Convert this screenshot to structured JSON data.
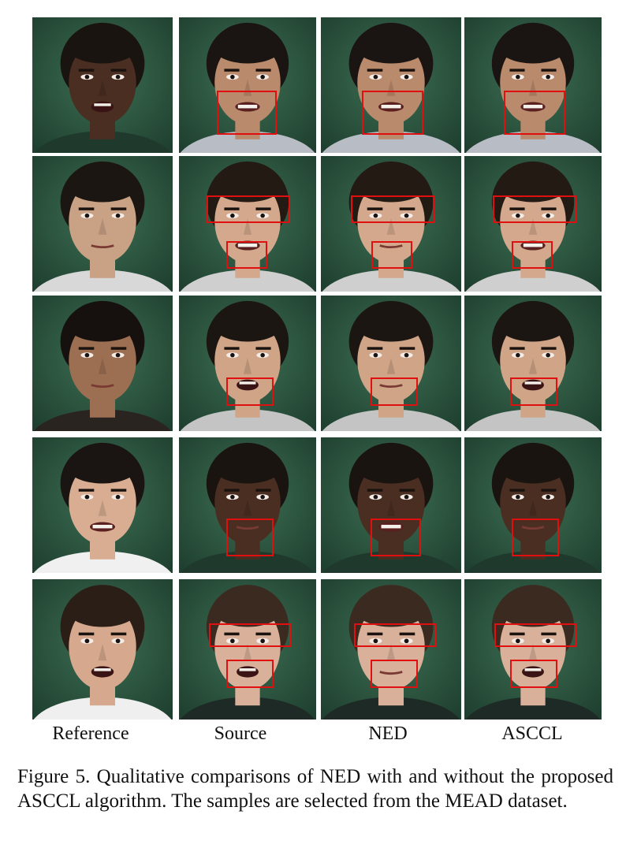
{
  "figure": {
    "columns": [
      {
        "key": "reference",
        "label": "Reference"
      },
      {
        "key": "source",
        "label": "Source"
      },
      {
        "key": "ned",
        "label": "NED"
      },
      {
        "key": "asccl",
        "label": "ASCCL"
      }
    ],
    "rows": [
      {
        "reference": {
          "skin": "#4a2e22",
          "hair": "#1a1410",
          "mouth": "open",
          "shirt": "#1f3a2c"
        },
        "source": {
          "skin": "#b98a6c",
          "hair": "#1a1412",
          "mouth": "teeth",
          "shirt": "#b8bcc4"
        },
        "ned": {
          "skin": "#b98a6c",
          "hair": "#1a1412",
          "mouth": "teeth",
          "shirt": "#b8bcc4"
        },
        "asccl": {
          "skin": "#b98a6c",
          "hair": "#1a1412",
          "mouth": "teeth",
          "shirt": "#b8bcc4"
        }
      },
      {
        "reference": {
          "skin": "#c9a184",
          "hair": "#1c1612",
          "mouth": "closed",
          "shirt": "#d8d8d8"
        },
        "source": {
          "skin": "#d4a88c",
          "hair": "#241a14",
          "mouth": "teeth",
          "shirt": "#cfcfcf"
        },
        "ned": {
          "skin": "#d4a88c",
          "hair": "#241a14",
          "mouth": "closed",
          "shirt": "#cfcfcf"
        },
        "asccl": {
          "skin": "#d4a88c",
          "hair": "#241a14",
          "mouth": "teeth",
          "shirt": "#cfcfcf"
        }
      },
      {
        "reference": {
          "skin": "#9c6e52",
          "hair": "#16110e",
          "mouth": "closed",
          "shirt": "#2a2420"
        },
        "source": {
          "skin": "#d0a487",
          "hair": "#1c1612",
          "mouth": "open",
          "shirt": "#c4c4c4"
        },
        "ned": {
          "skin": "#d0a487",
          "hair": "#1c1612",
          "mouth": "closed",
          "shirt": "#c4c4c4"
        },
        "asccl": {
          "skin": "#d0a487",
          "hair": "#1c1612",
          "mouth": "open",
          "shirt": "#c4c4c4"
        }
      },
      {
        "reference": {
          "skin": "#d8ad92",
          "hair": "#1a1412",
          "mouth": "teeth",
          "shirt": "#f0f0f0"
        },
        "source": {
          "skin": "#4a2e22",
          "hair": "#1a1410",
          "mouth": "closed",
          "shirt": "#1f3a2c"
        },
        "ned": {
          "skin": "#4a2e22",
          "hair": "#1a1410",
          "mouth": "teeth",
          "shirt": "#1f3a2c"
        },
        "asccl": {
          "skin": "#4a2e22",
          "hair": "#1a1410",
          "mouth": "closed",
          "shirt": "#1f3a2c"
        }
      },
      {
        "reference": {
          "skin": "#d6a98e",
          "hair": "#2a1e16",
          "mouth": "open",
          "shirt": "#efefef"
        },
        "source": {
          "skin": "#d9b099",
          "hair": "#3a2a20",
          "mouth": "open",
          "shirt": "#1e2a26"
        },
        "ned": {
          "skin": "#d9b099",
          "hair": "#3a2a20",
          "mouth": "closed",
          "shirt": "#1e2a26"
        },
        "asccl": {
          "skin": "#d9b099",
          "hair": "#3a2a20",
          "mouth": "open",
          "shirt": "#1e2a26"
        }
      }
    ],
    "highlight_color": "#e01010",
    "background_color": "#2f5a42",
    "caption": "Figure 5.  Qualitative comparisons of NED with and without the proposed ASCCL algorithm.  The samples are selected from the MEAD dataset."
  }
}
